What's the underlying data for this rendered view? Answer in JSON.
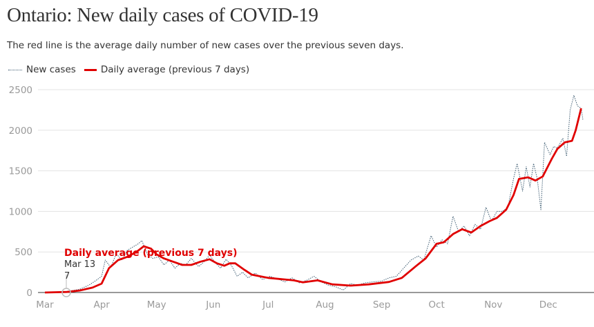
{
  "title": "Ontario: New daily cases of COVID-19",
  "subtitle": "The red line is the average daily number of new cases over the previous seven days.",
  "legend": {
    "new_cases": "New cases",
    "average": "Daily average (previous 7 days)"
  },
  "colors": {
    "new_cases": "#3b5a70",
    "average": "#e00000",
    "grid": "#e3e3e3"
  },
  "annotation": {
    "label": "Daily average (previous 7 days)",
    "date": "Mar 13",
    "value": "7"
  },
  "chart_data": {
    "type": "line",
    "title": "Ontario: New daily cases of COVID-19",
    "xlabel": "",
    "ylabel": "",
    "ylim": [
      0,
      2500
    ],
    "yticks": [
      "0",
      "500",
      "1000",
      "1500",
      "2000",
      "2500"
    ],
    "xticks": [
      "Mar",
      "Apr",
      "May",
      "Jun",
      "Jul",
      "Aug",
      "Sep",
      "Oct",
      "Nov",
      "Dec"
    ],
    "grid": true,
    "legend_position": "top-left",
    "series": [
      {
        "name": "New cases",
        "style": "dotted",
        "points": [
          [
            "Mar 1",
            0
          ],
          [
            "Mar 10",
            5
          ],
          [
            "Mar 15",
            20
          ],
          [
            "Mar 20",
            40
          ],
          [
            "Mar 25",
            90
          ],
          [
            "Mar 29",
            150
          ],
          [
            "Apr 1",
            200
          ],
          [
            "Apr 3",
            400
          ],
          [
            "Apr 6",
            310
          ],
          [
            "Apr 9",
            480
          ],
          [
            "Apr 12",
            400
          ],
          [
            "Apr 15",
            520
          ],
          [
            "Apr 18",
            560
          ],
          [
            "Apr 21",
            600
          ],
          [
            "Apr 23",
            640
          ],
          [
            "Apr 26",
            470
          ],
          [
            "Apr 29",
            420
          ],
          [
            "May 2",
            440
          ],
          [
            "May 5",
            340
          ],
          [
            "May 8",
            400
          ],
          [
            "May 11",
            300
          ],
          [
            "May 14",
            360
          ],
          [
            "May 17",
            340
          ],
          [
            "May 20",
            420
          ],
          [
            "May 24",
            320
          ],
          [
            "May 27",
            380
          ],
          [
            "May 30",
            460
          ],
          [
            "Jun 2",
            370
          ],
          [
            "Jun 5",
            300
          ],
          [
            "Jun 8",
            410
          ],
          [
            "Jun 11",
            330
          ],
          [
            "Jun 14",
            200
          ],
          [
            "Jun 17",
            250
          ],
          [
            "Jun 20",
            180
          ],
          [
            "Jun 24",
            240
          ],
          [
            "Jun 28",
            160
          ],
          [
            "Jul 2",
            200
          ],
          [
            "Jul 6",
            170
          ],
          [
            "Jul 10",
            130
          ],
          [
            "Jul 14",
            180
          ],
          [
            "Jul 18",
            120
          ],
          [
            "Jul 22",
            150
          ],
          [
            "Jul 26",
            200
          ],
          [
            "Jul 30",
            130
          ],
          [
            "Aug 3",
            90
          ],
          [
            "Aug 7",
            70
          ],
          [
            "Aug 11",
            30
          ],
          [
            "Aug 15",
            110
          ],
          [
            "Aug 19",
            90
          ],
          [
            "Aug 23",
            120
          ],
          [
            "Aug 27",
            130
          ],
          [
            "Sep 1",
            140
          ],
          [
            "Sep 5",
            180
          ],
          [
            "Sep 9",
            200
          ],
          [
            "Sep 13",
            300
          ],
          [
            "Sep 17",
            400
          ],
          [
            "Sep 21",
            450
          ],
          [
            "Sep 24",
            400
          ],
          [
            "Sep 28",
            700
          ],
          [
            "Oct 1",
            560
          ],
          [
            "Oct 4",
            650
          ],
          [
            "Oct 7",
            600
          ],
          [
            "Oct 10",
            940
          ],
          [
            "Oct 13",
            750
          ],
          [
            "Oct 16",
            820
          ],
          [
            "Oct 19",
            700
          ],
          [
            "Oct 22",
            840
          ],
          [
            "Oct 25",
            780
          ],
          [
            "Oct 28",
            1050
          ],
          [
            "Oct 31",
            880
          ],
          [
            "Nov 3",
            1000
          ],
          [
            "Nov 6",
            1000
          ],
          [
            "Nov 9",
            1050
          ],
          [
            "Nov 12",
            1400
          ],
          [
            "Nov 14",
            1590
          ],
          [
            "Nov 17",
            1250
          ],
          [
            "Nov 19",
            1550
          ],
          [
            "Nov 21",
            1300
          ],
          [
            "Nov 23",
            1590
          ],
          [
            "Nov 25",
            1400
          ],
          [
            "Nov 27",
            1020
          ],
          [
            "Nov 29",
            1850
          ],
          [
            "Dec 2",
            1700
          ],
          [
            "Dec 4",
            1800
          ],
          [
            "Dec 6",
            1780
          ],
          [
            "Dec 9",
            1900
          ],
          [
            "Dec 11",
            1680
          ],
          [
            "Dec 13",
            2250
          ],
          [
            "Dec 15",
            2430
          ],
          [
            "Dec 17",
            2300
          ],
          [
            "Dec 19",
            2270
          ],
          [
            "Dec 20",
            2120
          ]
        ]
      },
      {
        "name": "Daily average (previous 7 days)",
        "style": "solid",
        "points": [
          [
            "Mar 1",
            0
          ],
          [
            "Mar 13",
            7
          ],
          [
            "Mar 20",
            25
          ],
          [
            "Mar 27",
            60
          ],
          [
            "Apr 1",
            110
          ],
          [
            "Apr 5",
            300
          ],
          [
            "Apr 10",
            400
          ],
          [
            "Apr 15",
            440
          ],
          [
            "Apr 20",
            500
          ],
          [
            "Apr 24",
            570
          ],
          [
            "Apr 28",
            540
          ],
          [
            "May 1",
            470
          ],
          [
            "May 5",
            420
          ],
          [
            "May 10",
            380
          ],
          [
            "May 15",
            340
          ],
          [
            "May 20",
            340
          ],
          [
            "May 25",
            380
          ],
          [
            "May 30",
            410
          ],
          [
            "Jun 3",
            360
          ],
          [
            "Jun 7",
            330
          ],
          [
            "Jun 10",
            360
          ],
          [
            "Jun 13",
            360
          ],
          [
            "Jun 18",
            280
          ],
          [
            "Jun 22",
            220
          ],
          [
            "Jul 1",
            180
          ],
          [
            "Jul 15",
            150
          ],
          [
            "Jul 20",
            125
          ],
          [
            "Jul 28",
            150
          ],
          [
            "Aug 5",
            100
          ],
          [
            "Aug 15",
            85
          ],
          [
            "Aug 25",
            100
          ],
          [
            "Sep 5",
            130
          ],
          [
            "Sep 12",
            180
          ],
          [
            "Sep 20",
            330
          ],
          [
            "Sep 25",
            420
          ],
          [
            "Oct 1",
            600
          ],
          [
            "Oct 5",
            620
          ],
          [
            "Oct 10",
            720
          ],
          [
            "Oct 15",
            780
          ],
          [
            "Oct 20",
            740
          ],
          [
            "Oct 25",
            820
          ],
          [
            "Oct 30",
            880
          ],
          [
            "Nov 3",
            920
          ],
          [
            "Nov 8",
            1020
          ],
          [
            "Nov 12",
            1200
          ],
          [
            "Nov 15",
            1400
          ],
          [
            "Nov 20",
            1420
          ],
          [
            "Nov 24",
            1380
          ],
          [
            "Nov 28",
            1430
          ],
          [
            "Dec 3",
            1650
          ],
          [
            "Dec 6",
            1770
          ],
          [
            "Dec 10",
            1850
          ],
          [
            "Dec 14",
            1870
          ],
          [
            "Dec 16",
            2000
          ],
          [
            "Dec 19",
            2270
          ]
        ]
      }
    ]
  }
}
